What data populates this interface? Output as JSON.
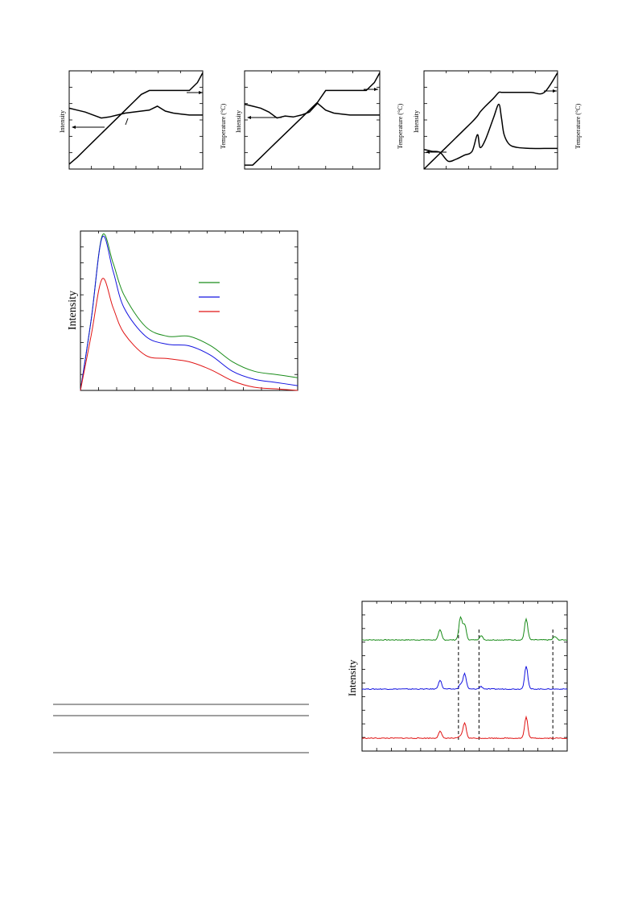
{
  "figures": {
    "fig_a": {
      "ylabel": "Intensity",
      "y2label": "Temperature (°C)"
    },
    "fig_b": {
      "ylabel": "Intensity",
      "y2label": "Temperature (°C)"
    },
    "fig_c": {
      "ylabel": "Intensity",
      "y2label": "Temperature (°C)"
    },
    "fig_pl": {
      "ylabel": "Intensity"
    },
    "fig_xrd": {
      "ylabel": "Intensity"
    }
  },
  "colors": {
    "green": "#1a8c1a",
    "blue": "#1414e0",
    "red": "#e01414",
    "black": "#000000"
  },
  "chart_data": [
    {
      "type": "line",
      "id": "fig_a",
      "xlabel": "",
      "ylabel": "Intensity",
      "y2label": "Temperature (°C)",
      "x": [
        0,
        6,
        12,
        18,
        24,
        30,
        36,
        42,
        48,
        54,
        60,
        66,
        72,
        78,
        84,
        90,
        96,
        100
      ],
      "series": [
        {
          "values": [
            0.62,
            0.6,
            0.58,
            0.55,
            0.52,
            0.53,
            0.55,
            0.57,
            0.58,
            0.59,
            0.6,
            0.64,
            0.59,
            0.57,
            0.56,
            0.55,
            0.55,
            0.55
          ]
        },
        {
          "values": [
            0.05,
            0.12,
            0.2,
            0.28,
            0.36,
            0.44,
            0.52,
            0.6,
            0.68,
            0.76,
            0.8,
            0.8,
            0.8,
            0.8,
            0.8,
            0.8,
            0.88,
            0.98
          ]
        }
      ]
    },
    {
      "type": "line",
      "id": "fig_b",
      "xlabel": "",
      "ylabel": "Intensity",
      "y2label": "Temperature (°C)",
      "x": [
        0,
        6,
        12,
        18,
        24,
        30,
        36,
        42,
        48,
        54,
        60,
        66,
        72,
        78,
        84,
        90,
        96,
        100
      ],
      "series": [
        {
          "values": [
            0.66,
            0.64,
            0.62,
            0.58,
            0.52,
            0.54,
            0.53,
            0.55,
            0.58,
            0.67,
            0.6,
            0.57,
            0.56,
            0.55,
            0.55,
            0.55,
            0.55,
            0.55
          ]
        },
        {
          "values": [
            0.04,
            0.04,
            0.12,
            0.2,
            0.28,
            0.36,
            0.44,
            0.52,
            0.6,
            0.68,
            0.8,
            0.8,
            0.8,
            0.8,
            0.8,
            0.8,
            0.88,
            0.98
          ]
        }
      ]
    },
    {
      "type": "line",
      "id": "fig_c",
      "xlabel": "",
      "ylabel": "Intensity",
      "y2label": "Temperature (°C)",
      "x": [
        0,
        6,
        12,
        18,
        24,
        30,
        36,
        40,
        42,
        46,
        52,
        56,
        58,
        60,
        64,
        70,
        80,
        90,
        100
      ],
      "series": [
        {
          "values": [
            0.2,
            0.18,
            0.17,
            0.08,
            0.1,
            0.14,
            0.18,
            0.35,
            0.22,
            0.3,
            0.52,
            0.66,
            0.52,
            0.35,
            0.25,
            0.22,
            0.21,
            0.21,
            0.21
          ]
        },
        {
          "values": [
            0.0,
            0.08,
            0.16,
            0.24,
            0.32,
            0.4,
            0.48,
            0.54,
            0.58,
            0.64,
            0.72,
            0.78,
            0.78,
            0.78,
            0.78,
            0.78,
            0.78,
            0.78,
            0.98
          ]
        }
      ]
    },
    {
      "type": "line",
      "id": "fig_pl",
      "xlabel": "",
      "ylabel": "Intensity",
      "x": [
        0,
        5,
        10,
        15,
        20,
        30,
        40,
        50,
        60,
        70,
        80,
        90,
        100
      ],
      "series": [
        {
          "color": "#1a8c1a",
          "values": [
            0.0,
            0.45,
            0.97,
            0.8,
            0.6,
            0.4,
            0.34,
            0.34,
            0.28,
            0.18,
            0.12,
            0.1,
            0.08
          ]
        },
        {
          "color": "#1414e0",
          "values": [
            0.0,
            0.45,
            0.96,
            0.75,
            0.52,
            0.34,
            0.29,
            0.28,
            0.22,
            0.12,
            0.07,
            0.05,
            0.03
          ]
        },
        {
          "color": "#e01414",
          "values": [
            0.0,
            0.35,
            0.7,
            0.52,
            0.36,
            0.22,
            0.2,
            0.18,
            0.13,
            0.06,
            0.02,
            0.01,
            0.0
          ]
        }
      ]
    },
    {
      "type": "line",
      "id": "fig_xrd",
      "xlabel": "",
      "ylabel": "Intensity",
      "peaks": [
        {
          "x": 38,
          "h": 0.35
        },
        {
          "x": 48,
          "h": 0.8
        },
        {
          "x": 50,
          "h": 0.55
        },
        {
          "x": 58,
          "h": 0.15
        },
        {
          "x": 80,
          "h": 0.75
        },
        {
          "x": 94,
          "h": 0.12
        }
      ],
      "series": [
        {
          "color": "#1a8c1a",
          "offset": 2,
          "peak_scale": [
            1.0,
            1.0,
            1.0,
            1.0,
            1.0,
            1.0
          ]
        },
        {
          "color": "#1414e0",
          "offset": 1,
          "peak_scale": [
            0.9,
            0.2,
            1.0,
            0.6,
            1.1,
            0.0
          ]
        },
        {
          "color": "#e01414",
          "offset": 0,
          "peak_scale": [
            0.7,
            0.1,
            1.0,
            0.0,
            1.0,
            0.0
          ]
        }
      ],
      "dashed_x": [
        47,
        57,
        93
      ]
    }
  ]
}
